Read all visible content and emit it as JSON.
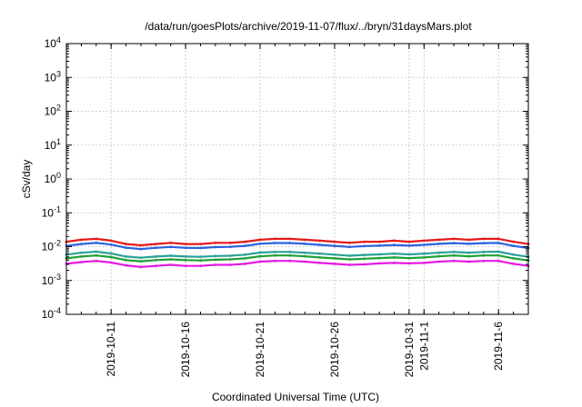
{
  "chart_data": {
    "type": "line",
    "title": "/data/run/goesPlots/archive/2019-11-07/flux/../bryn/31daysMars.plot",
    "xlabel": "Coordinated Universal Time (UTC)",
    "ylabel": "cSv/day",
    "yscale": "log",
    "ylim": [
      0.0001,
      10000
    ],
    "xlim": [
      "2019-10-08",
      "2019-11-08"
    ],
    "grid": true,
    "x_ticks": [
      {
        "date": "2019-10-11",
        "label": "2019-10-11"
      },
      {
        "date": "2019-10-16",
        "label": "2019-10-16"
      },
      {
        "date": "2019-10-21",
        "label": "2019-10-21"
      },
      {
        "date": "2019-10-26",
        "label": "2019-10-26"
      },
      {
        "date": "2019-10-31",
        "label": "2019-10-31"
      },
      {
        "date": "2019-11-01",
        "label": "2019-11-1"
      },
      {
        "date": "2019-11-06",
        "label": "2019-11-6"
      }
    ],
    "y_ticks": [
      {
        "value": 0.0001,
        "base": "10",
        "exp": "-4"
      },
      {
        "value": 0.001,
        "base": "10",
        "exp": "-3"
      },
      {
        "value": 0.01,
        "base": "10",
        "exp": "-2"
      },
      {
        "value": 0.1,
        "base": "10",
        "exp": "-1"
      },
      {
        "value": 1,
        "base": "10",
        "exp": "0"
      },
      {
        "value": 10,
        "base": "10",
        "exp": "1"
      },
      {
        "value": 100,
        "base": "10",
        "exp": "2"
      },
      {
        "value": 1000,
        "base": "10",
        "exp": "3"
      },
      {
        "value": 10000,
        "base": "10",
        "exp": "4"
      }
    ],
    "x": [
      "2019-10-08",
      "2019-10-09",
      "2019-10-10",
      "2019-10-11",
      "2019-10-12",
      "2019-10-13",
      "2019-10-14",
      "2019-10-15",
      "2019-10-16",
      "2019-10-17",
      "2019-10-18",
      "2019-10-19",
      "2019-10-20",
      "2019-10-21",
      "2019-10-22",
      "2019-10-23",
      "2019-10-24",
      "2019-10-25",
      "2019-10-26",
      "2019-10-27",
      "2019-10-28",
      "2019-10-29",
      "2019-10-30",
      "2019-10-31",
      "2019-11-01",
      "2019-11-02",
      "2019-11-03",
      "2019-11-04",
      "2019-11-05",
      "2019-11-06",
      "2019-11-07",
      "2019-11-08"
    ],
    "series": [
      {
        "color": "#e41a1c",
        "values": [
          0.014,
          0.016,
          0.017,
          0.015,
          0.012,
          0.011,
          0.012,
          0.013,
          0.012,
          0.012,
          0.013,
          0.013,
          0.014,
          0.016,
          0.017,
          0.017,
          0.016,
          0.015,
          0.014,
          0.013,
          0.014,
          0.014,
          0.015,
          0.014,
          0.015,
          0.016,
          0.017,
          0.016,
          0.017,
          0.017,
          0.014,
          0.012
        ]
      },
      {
        "color": "#2b63e0",
        "values": [
          0.0105,
          0.012,
          0.013,
          0.0115,
          0.0093,
          0.0085,
          0.0092,
          0.0098,
          0.0092,
          0.0091,
          0.0097,
          0.0099,
          0.0106,
          0.0122,
          0.0128,
          0.0128,
          0.0121,
          0.0113,
          0.0105,
          0.0098,
          0.0104,
          0.0107,
          0.0112,
          0.0107,
          0.0113,
          0.0121,
          0.0127,
          0.0121,
          0.0127,
          0.0129,
          0.0105,
          0.0091
        ]
      },
      {
        "color": "#2aa198",
        "values": [
          0.0058,
          0.0066,
          0.0071,
          0.0063,
          0.0051,
          0.0047,
          0.0051,
          0.0054,
          0.0051,
          0.005,
          0.0053,
          0.0054,
          0.0058,
          0.0067,
          0.007,
          0.007,
          0.0066,
          0.0062,
          0.0058,
          0.0054,
          0.0057,
          0.0059,
          0.0062,
          0.0059,
          0.0062,
          0.0066,
          0.007,
          0.0066,
          0.007,
          0.0071,
          0.0058,
          0.005
        ]
      },
      {
        "color": "#21a037",
        "values": [
          0.0045,
          0.0051,
          0.0055,
          0.0049,
          0.004,
          0.0037,
          0.004,
          0.0042,
          0.004,
          0.0039,
          0.0041,
          0.0042,
          0.0045,
          0.0052,
          0.0055,
          0.0055,
          0.0052,
          0.0048,
          0.0045,
          0.0042,
          0.0044,
          0.0046,
          0.0048,
          0.0046,
          0.0048,
          0.0052,
          0.0055,
          0.0052,
          0.0055,
          0.0055,
          0.0045,
          0.0039
        ]
      },
      {
        "color": "#e21ce2",
        "values": [
          0.0031,
          0.0035,
          0.0038,
          0.0034,
          0.0028,
          0.0025,
          0.0027,
          0.0029,
          0.0027,
          0.0027,
          0.0029,
          0.0029,
          0.0031,
          0.0036,
          0.0038,
          0.0038,
          0.0036,
          0.0033,
          0.0031,
          0.0029,
          0.003,
          0.0032,
          0.0033,
          0.0032,
          0.0033,
          0.0036,
          0.0038,
          0.0036,
          0.0038,
          0.0038,
          0.0031,
          0.0027
        ]
      }
    ]
  }
}
